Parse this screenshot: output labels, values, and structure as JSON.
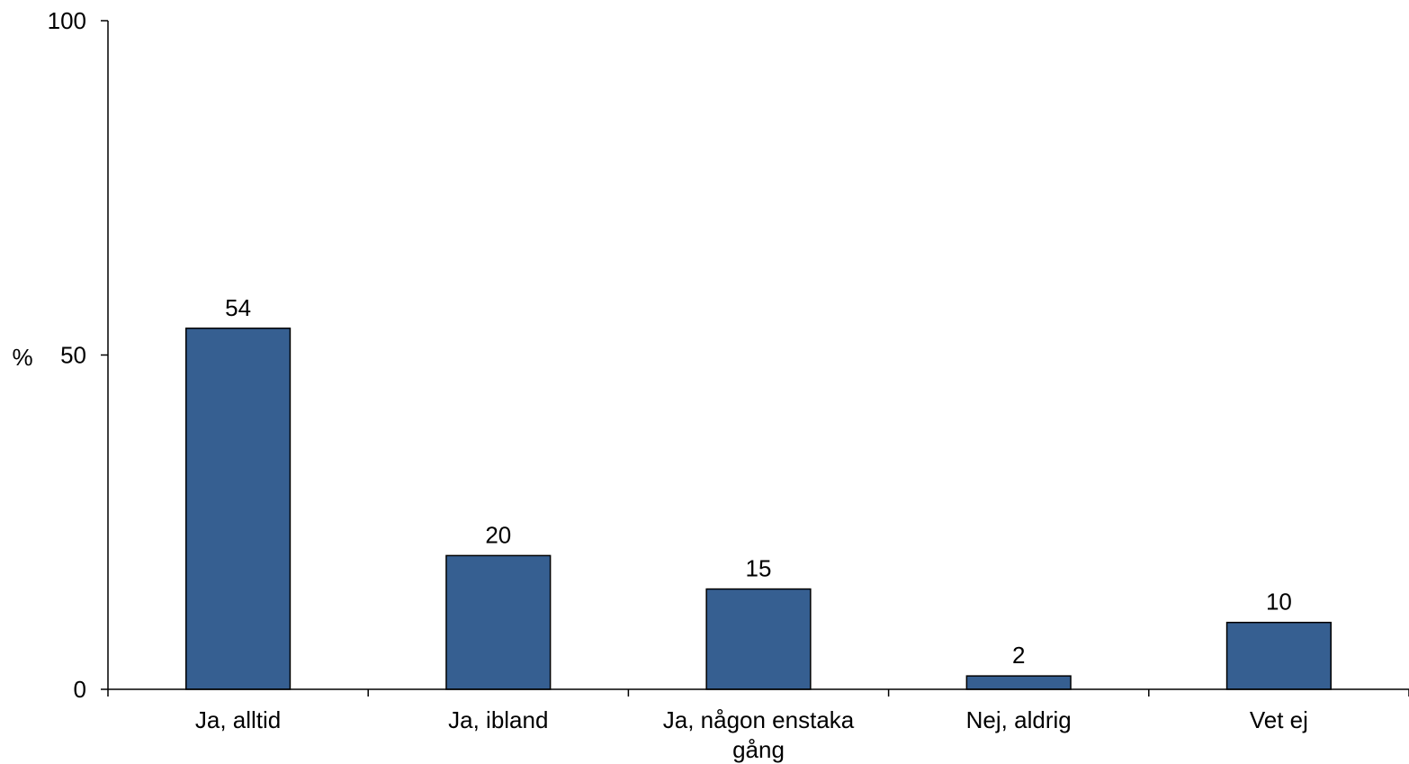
{
  "chart_data": {
    "type": "bar",
    "categories": [
      "Ja, alltid",
      "Ja, ibland",
      "Ja, någon enstaka gång",
      "Nej, aldrig",
      "Vet ej"
    ],
    "values": [
      54,
      20,
      15,
      2,
      10
    ],
    "data_labels": [
      "54",
      "20",
      "15",
      "2",
      "10"
    ],
    "ylabel": "%",
    "ylim": [
      0,
      100
    ],
    "yticks": [
      0,
      50,
      100
    ],
    "grid": false,
    "legend": "none",
    "bar_color": "#365f91"
  }
}
